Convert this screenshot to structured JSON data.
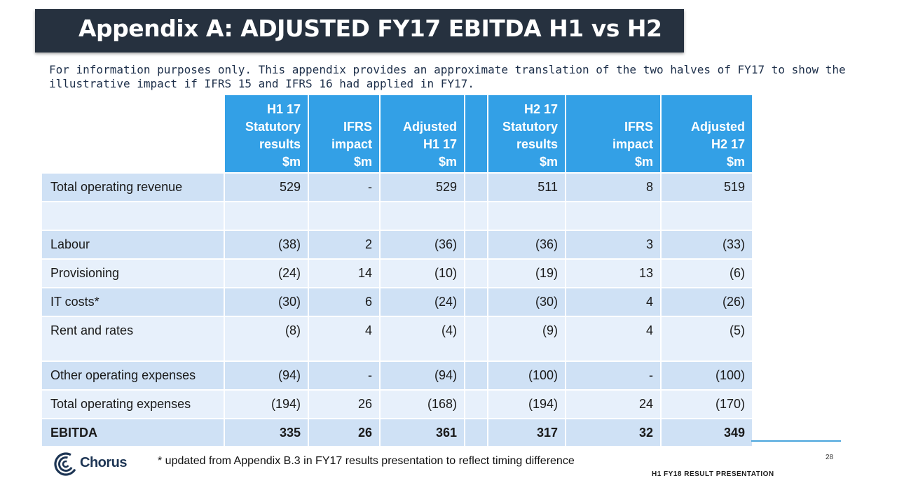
{
  "title": "Appendix A: ADJUSTED FY17 EBITDA H1 vs H2",
  "intro": "For information purposes only. This appendix provides an approximate translation of the two halves of FY17 to show the illustrative impact if IFRS 15 and IFRS 16 had applied in FY17.",
  "columns": [
    [
      "H1 17",
      "Statutory",
      "results",
      "$m"
    ],
    [
      "IFRS",
      "impact",
      "$m"
    ],
    [
      "Adjusted",
      "H1 17",
      "$m"
    ],
    [
      "H2 17",
      "Statutory",
      "results",
      "$m"
    ],
    [
      "IFRS",
      "impact",
      "$m"
    ],
    [
      "Adjusted",
      "H2 17",
      "$m"
    ]
  ],
  "rows": [
    {
      "label": "Total operating revenue",
      "values": [
        "529",
        "-",
        "529",
        "511",
        "8",
        "519"
      ]
    },
    {
      "label": "",
      "values": [
        "",
        "",
        "",
        "",
        "",
        ""
      ]
    },
    {
      "label": "Labour",
      "values": [
        "(38)",
        "2",
        "(36)",
        "(36)",
        "3",
        "(33)"
      ]
    },
    {
      "label": "Provisioning",
      "values": [
        "(24)",
        "14",
        "(10)",
        "(19)",
        "13",
        "(6)"
      ]
    },
    {
      "label": "IT costs*",
      "values": [
        "(30)",
        "6",
        "(24)",
        "(30)",
        "4",
        "(26)"
      ]
    },
    {
      "label": "Rent and rates",
      "values": [
        "(8)",
        "4",
        "(4)",
        "(9)",
        "4",
        "(5)"
      ]
    },
    {
      "label": "Other operating expenses",
      "values": [
        "(94)",
        "-",
        "(94)",
        "(100)",
        "-",
        "(100)"
      ]
    },
    {
      "label": "Total operating expenses",
      "values": [
        "(194)",
        "26",
        "(168)",
        "(194)",
        "24",
        "(170)"
      ]
    },
    {
      "label": "EBITDA",
      "values": [
        "335",
        "26",
        "361",
        "317",
        "32",
        "349"
      ]
    }
  ],
  "brand": {
    "name": "Chorus",
    "icon": "chorus-logo-icon",
    "color": "#1d3554"
  },
  "footnote": "* updated from Appendix B.3 in FY17 results presentation to reflect timing difference",
  "page_number": "28",
  "footer_label": "H1 FY18 RESULT PRESENTATION",
  "colors": {
    "title_bg": "#26313f",
    "header_bg": "#33a0e6",
    "row_dark": "#cfe1f5",
    "row_light": "#e7f0fb"
  }
}
